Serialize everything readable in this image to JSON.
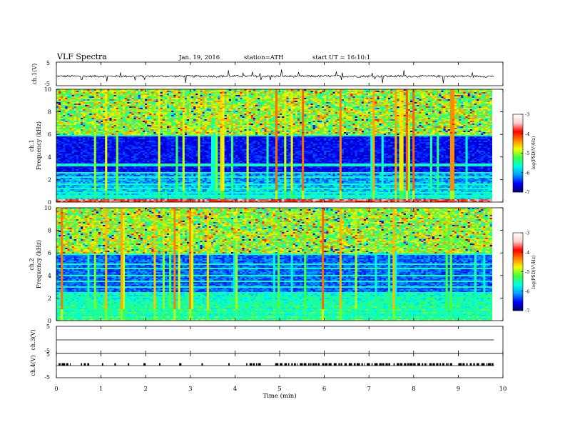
{
  "header": {
    "title": "VLF Spectra",
    "date": "Jan. 19, 2016",
    "station": "station=ATH",
    "start": "start UT = 16:10:1"
  },
  "chart_data": [
    {
      "type": "line",
      "panel": "ch1-waveform",
      "ylabel": "ch.1(V)",
      "ylim": [
        -5,
        5
      ],
      "yticks": [
        "5",
        "-5"
      ],
      "series": [
        {
          "mean": -1,
          "description_value_range": [
            -2,
            0
          ]
        }
      ]
    },
    {
      "type": "heatmap",
      "panel": "ch1-spectrogram",
      "ylabel_top": "ch.1",
      "ylabel": "Frequency (kHz)",
      "ylim": [
        0,
        10
      ],
      "yticks": [
        "0",
        "2",
        "4",
        "6",
        "8",
        "10"
      ],
      "colorbar": {
        "label": "log(PSD(V²/Hz)",
        "range": [
          -7,
          -3
        ],
        "ticks": [
          "-3",
          "-4",
          "-5",
          "-6",
          "-7"
        ],
        "colors": [
          "#000070",
          "#0000ff",
          "#00a0ff",
          "#00ffe0",
          "#40ff40",
          "#f0ff00",
          "#ff8000",
          "#ff0000",
          "#ffd0d0",
          "#ffffff"
        ]
      }
    },
    {
      "type": "heatmap",
      "panel": "ch2-spectrogram",
      "ylabel_top": "ch.2",
      "ylabel": "Frequency (kHz)",
      "ylim": [
        0,
        10
      ],
      "yticks": [
        "0",
        "2",
        "4",
        "6",
        "8",
        "10"
      ],
      "colorbar": {
        "label": "log(PSD(V²/Hz)",
        "range": [
          -7,
          -3
        ],
        "ticks": [
          "-3",
          "-4",
          "-5",
          "-6",
          "-7"
        ]
      }
    },
    {
      "type": "line",
      "panel": "ch3-waveform",
      "ylabel": "ch.3(V)",
      "ylim": [
        -5,
        5
      ],
      "yticks": [
        "5",
        "-5"
      ],
      "series": [
        {
          "mean": 0
        }
      ]
    },
    {
      "type": "line",
      "panel": "ch4-waveform",
      "ylabel": "ch.4(V)",
      "ylim": [
        -5,
        5
      ],
      "yticks": [
        "5",
        "-5"
      ],
      "series": [
        {
          "mean": 0,
          "pulse_level": 1
        }
      ]
    }
  ],
  "xaxis": {
    "label": "Time (min)",
    "xlim": [
      0,
      10
    ],
    "ticks": [
      "0",
      "1",
      "2",
      "3",
      "4",
      "5",
      "6",
      "7",
      "8",
      "9",
      "10"
    ],
    "data_end": 9.8
  }
}
